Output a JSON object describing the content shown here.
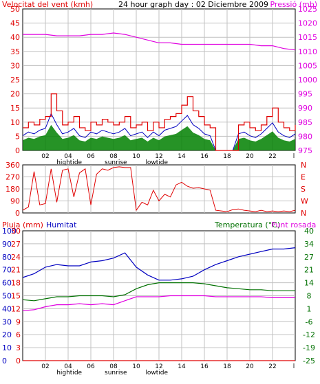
{
  "colors": {
    "wind": "#e00000",
    "direction": "#e00000",
    "pressure": "#e000e0",
    "humidity": "#0000c0",
    "temperature": "#007000",
    "dewpoint": "#e000e0",
    "rain": "#e00000",
    "gust_fill": "#7a1010",
    "avg_line": "#0000c0",
    "green_fill": "#008000",
    "grid": "#c0c0c0"
  },
  "chart_data": [
    {
      "type": "line",
      "title": "24 hour graph day : 02 Diciembre 2009",
      "y_left_label": "Velocitat del vent (kmh)",
      "y_right_label": "Pressió (mb)",
      "y_left_ticks": [
        "0",
        "5",
        "10",
        "15",
        "20",
        "25",
        "30",
        "35",
        "40",
        "45",
        "50"
      ],
      "y_right_ticks": [
        "975",
        "980",
        "985",
        "990",
        "995",
        "1000",
        "1005",
        "1010",
        "1015",
        "1020",
        "1025"
      ],
      "ylim_left": [
        0,
        50
      ],
      "ylim_right": [
        975,
        1025
      ],
      "x_ticks": [
        "02",
        "04",
        "06",
        "08",
        "10",
        "12",
        "14",
        "16",
        "18",
        "20",
        "22"
      ],
      "x_tick_hours": [
        2,
        4,
        6,
        8,
        10,
        12,
        14,
        16,
        18,
        20,
        22
      ],
      "xlim_hours": [
        0,
        24
      ],
      "annotations": [
        {
          "label": "hightide",
          "hour": 4.1
        },
        {
          "label": "sunrise",
          "hour": 8.2
        },
        {
          "label": "lowtide",
          "hour": 11.8
        }
      ],
      "grid": true,
      "series": [
        {
          "name": "Velocitat del vent",
          "axis": "left",
          "x": [
            0,
            0.5,
            1,
            1.5,
            2,
            2.5,
            3,
            3.5,
            4,
            4.5,
            5,
            5.5,
            6,
            6.5,
            7,
            7.5,
            8,
            8.5,
            9,
            9.5,
            10,
            10.5,
            11,
            11.5,
            12,
            12.5,
            13,
            13.5,
            14,
            14.5,
            15,
            15.5,
            16,
            16.5,
            17,
            17.5,
            18,
            18.5,
            19,
            19.5,
            20,
            20.5,
            21,
            21.5,
            22,
            22.5,
            23,
            23.5,
            24
          ],
          "y": [
            8,
            10,
            9,
            11,
            12,
            20,
            14,
            9,
            10,
            12,
            8,
            7,
            10,
            9,
            11,
            10,
            9,
            10,
            12,
            8,
            9,
            10,
            7,
            10,
            8,
            11,
            12,
            13,
            16,
            19,
            14,
            12,
            9,
            8,
            0,
            0,
            0,
            0,
            9,
            10,
            8,
            7,
            9,
            12,
            15,
            10,
            8,
            7,
            9
          ]
        },
        {
          "name": "Pressió",
          "axis": "right",
          "x": [
            0,
            1,
            2,
            3,
            4,
            5,
            6,
            7,
            8,
            9,
            10,
            11,
            12,
            13,
            14,
            15,
            16,
            17,
            18,
            19,
            20,
            21,
            22,
            23,
            24
          ],
          "y": [
            1016,
            1016,
            1016,
            1015.5,
            1015.5,
            1015.5,
            1016,
            1016,
            1016.5,
            1016,
            1015,
            1014,
            1013,
            1013,
            1012.5,
            1012.5,
            1012.5,
            1012.5,
            1012.5,
            1012.5,
            1012.5,
            1012,
            1012,
            1011,
            1010.5
          ]
        }
      ]
    },
    {
      "type": "scatter",
      "y_left_ticks": [
        "0",
        "90",
        "180",
        "270",
        "360"
      ],
      "y_right_ticks": [
        "N",
        "W",
        "S",
        "E",
        "N"
      ],
      "ylim": [
        0,
        360
      ],
      "xlim_hours": [
        0,
        24
      ],
      "series": [
        {
          "name": "Direcció",
          "x": [
            0,
            0.5,
            1,
            1.5,
            2,
            2.5,
            3,
            3.5,
            4,
            4.5,
            5,
            5.5,
            6,
            6.5,
            7,
            7.5,
            8,
            8.5,
            9,
            9.5,
            10,
            10.5,
            11,
            11.5,
            12,
            12.5,
            13,
            13.5,
            14,
            14.5,
            15,
            15.5,
            16,
            16.5,
            17,
            17.5,
            18,
            18.5,
            19,
            19.5,
            20,
            20.5,
            21,
            21.5,
            22,
            22.5,
            23,
            23.5,
            24
          ],
          "y": [
            20,
            45,
            310,
            60,
            70,
            330,
            80,
            320,
            330,
            120,
            300,
            330,
            60,
            290,
            330,
            320,
            340,
            345,
            340,
            340,
            20,
            80,
            60,
            170,
            90,
            140,
            120,
            210,
            230,
            200,
            185,
            190,
            180,
            170,
            20,
            15,
            10,
            25,
            30,
            20,
            15,
            10,
            20,
            10,
            15,
            10,
            15,
            10,
            20
          ]
        }
      ]
    },
    {
      "type": "line",
      "y_label_rain": "Pluja (mm)",
      "y_label_humidity": "Humitat",
      "y_label_temp": "Temperatura (°C)",
      "y_label_dew": "Punt rosada",
      "y_rain_ticks": [
        "0",
        "3",
        "6",
        "9",
        "12",
        "15",
        "18",
        "21",
        "24",
        "27",
        "30"
      ],
      "y_hum_ticks": [
        "0",
        "10",
        "20",
        "30",
        "40",
        "50",
        "60",
        "70",
        "80",
        "90",
        "100"
      ],
      "y_temp_ticks": [
        "-25",
        "-19",
        "-12",
        "-6",
        "1",
        "8",
        "14",
        "21",
        "27",
        "34",
        "40"
      ],
      "ylim_humidity": [
        0,
        100
      ],
      "ylim_temperature": [
        -25,
        40
      ],
      "ylim_rain": [
        0,
        30
      ],
      "x_ticks": [
        "02",
        "04",
        "06",
        "08",
        "10",
        "12",
        "14",
        "16",
        "18",
        "20",
        "22"
      ],
      "x_tick_hours": [
        2,
        4,
        6,
        8,
        10,
        12,
        14,
        16,
        18,
        20,
        22
      ],
      "xlim_hours": [
        0,
        24
      ],
      "annotations": [
        {
          "label": "hightide",
          "hour": 4.1
        },
        {
          "label": "sunrise",
          "hour": 8.2
        },
        {
          "label": "lowtide",
          "hour": 11.8
        }
      ],
      "grid": true,
      "series": [
        {
          "name": "Humitat",
          "axis": "humidity",
          "x": [
            0,
            1,
            2,
            3,
            4,
            5,
            6,
            7,
            8,
            9,
            10,
            11,
            12,
            13,
            14,
            15,
            16,
            17,
            18,
            19,
            20,
            21,
            22,
            23,
            24
          ],
          "y": [
            64,
            67,
            72,
            74,
            73,
            73,
            76,
            77,
            79,
            83,
            72,
            66,
            62,
            62,
            63,
            65,
            70,
            74,
            77,
            80,
            82,
            84,
            86,
            86,
            87
          ]
        },
        {
          "name": "Temperatura",
          "axis": "temperature",
          "x": [
            0,
            1,
            2,
            3,
            4,
            5,
            6,
            7,
            8,
            9,
            10,
            11,
            12,
            13,
            14,
            15,
            16,
            17,
            18,
            19,
            20,
            21,
            22,
            23,
            24
          ],
          "y": [
            5.5,
            5,
            6,
            7,
            7,
            7.5,
            7.5,
            7.5,
            7,
            8,
            11,
            13,
            14,
            14,
            14,
            14,
            13.5,
            12.5,
            11.5,
            11,
            10.5,
            10.5,
            10,
            10,
            10
          ]
        },
        {
          "name": "Punt rosada",
          "axis": "temperature",
          "x": [
            0,
            1,
            2,
            3,
            4,
            5,
            6,
            7,
            8,
            9,
            10,
            11,
            12,
            13,
            14,
            15,
            16,
            17,
            18,
            19,
            20,
            21,
            22,
            23,
            24
          ],
          "y": [
            0,
            0.5,
            2,
            3,
            3,
            3.5,
            3,
            3.5,
            3,
            5,
            7,
            7,
            7,
            7.5,
            7.5,
            7.5,
            7.5,
            7,
            7,
            7,
            7,
            7,
            6.5,
            6.5,
            6.5
          ]
        },
        {
          "name": "Pluja",
          "axis": "rain",
          "x": [
            0,
            24
          ],
          "y": [
            0,
            0
          ]
        }
      ]
    }
  ]
}
